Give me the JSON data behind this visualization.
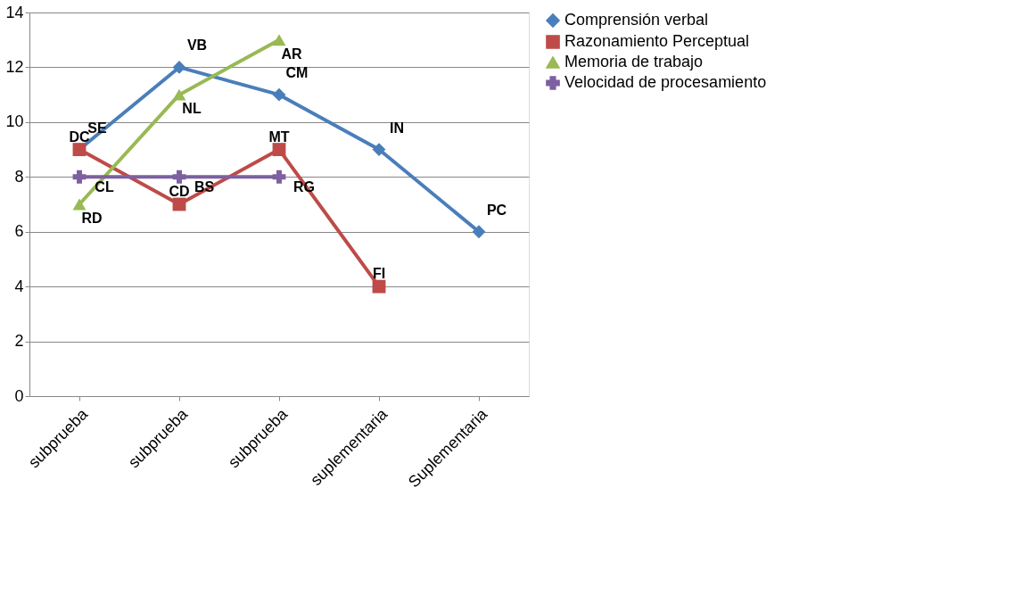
{
  "chart_data": {
    "type": "line",
    "categories": [
      "subprueba",
      "subprueba",
      "subprueba",
      "suplementaria",
      "Suplementaria"
    ],
    "ylim": [
      0,
      14
    ],
    "yticks": [
      0,
      2,
      4,
      6,
      8,
      10,
      12,
      14
    ],
    "grid": "y",
    "legend": "right",
    "series": [
      {
        "name": "Comprensión verbal",
        "color": "#4a7ebb",
        "marker": "diamond",
        "values": [
          9,
          12,
          11,
          9,
          6
        ],
        "value_labels": [
          "SE",
          "VB",
          "CM",
          "IN",
          "PC"
        ]
      },
      {
        "name": "Razonamiento Perceptual",
        "color": "#be4b48",
        "marker": "square",
        "values": [
          9,
          7,
          9,
          4,
          null
        ],
        "value_labels": [
          "DC",
          "CD",
          "MT",
          "FI",
          null
        ]
      },
      {
        "name": "Memoria de trabajo",
        "color": "#98b954",
        "marker": "triangle",
        "values": [
          7,
          11,
          13,
          null,
          null
        ],
        "value_labels": [
          "RD",
          "NL",
          "AR",
          null,
          null
        ]
      },
      {
        "name": "Velocidad de procesamiento",
        "color": "#7d60a0",
        "marker": "cross",
        "values": [
          8,
          8,
          8,
          null,
          null
        ],
        "value_labels": [
          "CL",
          "BS",
          "RG",
          null,
          null
        ]
      }
    ]
  }
}
